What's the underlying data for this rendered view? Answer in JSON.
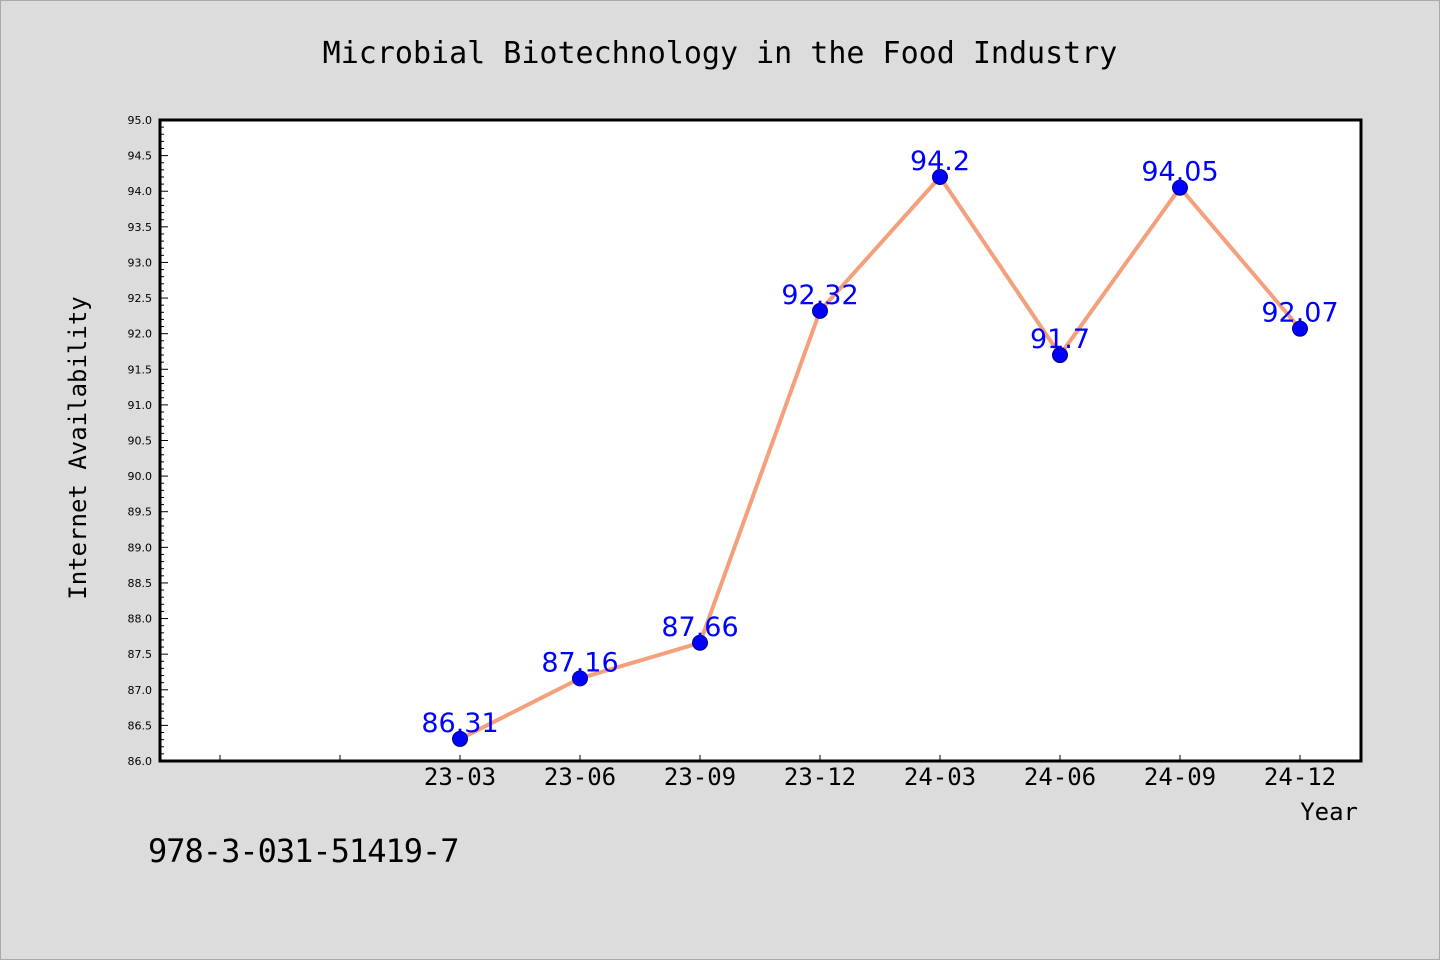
{
  "chart_data": {
    "type": "line",
    "title": "Microbial Biotechnology in the Food Industry",
    "xlabel": "Year",
    "ylabel": "Internet Availability",
    "categories": [
      "23-03",
      "23-06",
      "23-09",
      "23-12",
      "24-03",
      "24-06",
      "24-09",
      "24-12"
    ],
    "series": [
      {
        "values": [
          86.31,
          87.16,
          87.66,
          92.32,
          94.2,
          91.7,
          94.05,
          92.07
        ],
        "data_labels": [
          "86.31",
          "87.16",
          "87.66",
          "92.32",
          "94.2",
          "91.7",
          "94.05",
          "92.07"
        ]
      }
    ],
    "ylim": [
      86.0,
      95.0
    ],
    "yticks": [
      "86.0",
      "86.5",
      "87.0",
      "87.5",
      "88.0",
      "88.5",
      "89.0",
      "89.5",
      "90.0",
      "90.5",
      "91.0",
      "91.5",
      "92.0",
      "92.5",
      "93.0",
      "93.5",
      "94.0",
      "94.5",
      "95.0"
    ],
    "grid": false,
    "colors": {
      "line": "#f4a07c",
      "marker": "#0000ff",
      "label": "#0000ff",
      "background": "#dcdcdc",
      "plot_background": "#ffffff"
    }
  },
  "footer": {
    "text": "978-3-031-51419-7"
  }
}
